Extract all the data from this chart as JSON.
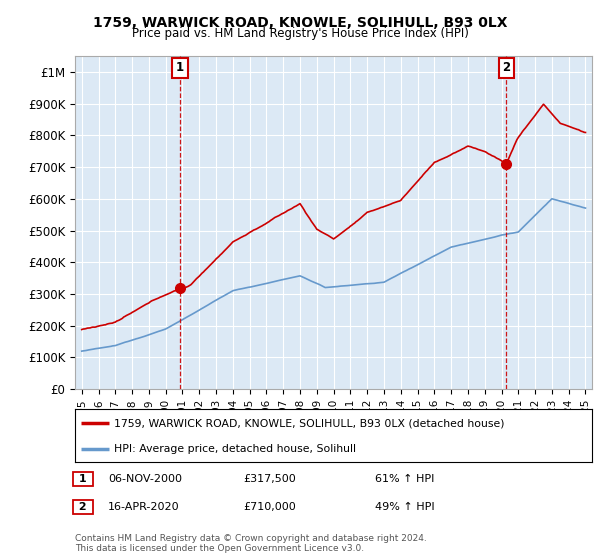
{
  "title": "1759, WARWICK ROAD, KNOWLE, SOLIHULL, B93 0LX",
  "subtitle": "Price paid vs. HM Land Registry's House Price Index (HPI)",
  "ylabel_ticks": [
    "£0",
    "£100K",
    "£200K",
    "£300K",
    "£400K",
    "£500K",
    "£600K",
    "£700K",
    "£800K",
    "£900K",
    "£1M"
  ],
  "ytick_values": [
    0,
    100000,
    200000,
    300000,
    400000,
    500000,
    600000,
    700000,
    800000,
    900000,
    1000000
  ],
  "ylim": [
    0,
    1050000
  ],
  "xlim_start": 1994.6,
  "xlim_end": 2025.4,
  "sale1_x": 2000.85,
  "sale1_y": 317500,
  "sale2_x": 2020.29,
  "sale2_y": 710000,
  "legend_line1": "1759, WARWICK ROAD, KNOWLE, SOLIHULL, B93 0LX (detached house)",
  "legend_line2": "HPI: Average price, detached house, Solihull",
  "ann1_label": "1",
  "ann2_label": "2",
  "ann1_date": "06-NOV-2000",
  "ann1_price": "£317,500",
  "ann1_hpi": "61% ↑ HPI",
  "ann2_date": "16-APR-2020",
  "ann2_price": "£710,000",
  "ann2_hpi": "49% ↑ HPI",
  "footer": "Contains HM Land Registry data © Crown copyright and database right 2024.\nThis data is licensed under the Open Government Licence v3.0.",
  "line_color_red": "#cc0000",
  "line_color_blue": "#6699cc",
  "vline_color": "#cc0000",
  "background_color": "#ffffff",
  "plot_bg_color": "#dce9f5",
  "grid_color": "#ffffff"
}
